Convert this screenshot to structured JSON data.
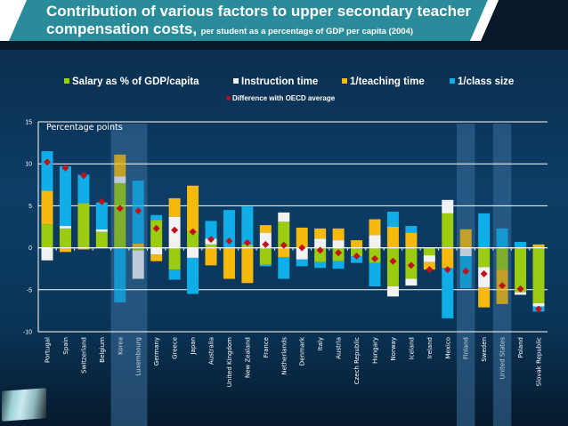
{
  "header": {
    "title_line1": "Contribution of various factors to upper secondary teacher",
    "title_line2_main": "compensation costs,",
    "title_line2_sub": "per student as a percentage of GDP per capita (2004)"
  },
  "legend": {
    "items": [
      {
        "label": "Salary as % of GDP/capita",
        "color": "#9ccc10"
      },
      {
        "label": "Instruction time",
        "color": "#f2f2f2"
      },
      {
        "label": "1/teaching time",
        "color": "#f7b90b"
      },
      {
        "label": "1/class size",
        "color": "#10aee8"
      }
    ],
    "diff_label": "Difference with OECD average",
    "diff_color": "#c0101a"
  },
  "chart_data": {
    "type": "bar",
    "stacked": true,
    "title": "Contribution of various factors to upper secondary teacher compensation costs, per student as a percentage of GDP per capita (2004)",
    "ylabel": "Percentage points",
    "xlabel": "",
    "ylim": [
      -10,
      15
    ],
    "yticks": [
      15,
      10,
      5,
      0,
      -5,
      -10
    ],
    "grid": true,
    "legend_position": "top",
    "highlighted": [
      "Korea",
      "Luxembourg",
      "Finland",
      "United States"
    ],
    "component_colors": {
      "salary": "#9ccc10",
      "instruction": "#f2f2f2",
      "teaching": "#f7b90b",
      "classsize": "#10aee8"
    },
    "categories": [
      "Portugal",
      "Spain",
      "Switzerland",
      "Belgium",
      "Korea",
      "Luxembourg",
      "Germany",
      "Greece",
      "Japan",
      "Australia",
      "United Kingdom",
      "New Zealand",
      "France",
      "Netherlands",
      "Denmark",
      "Italy",
      "Austria",
      "Czech Republic",
      "Hungary",
      "Norway",
      "Iceland",
      "Ireland",
      "Mexico",
      "Finland",
      "Sweden",
      "United States",
      "Poland",
      "Slovak Republic"
    ],
    "series": [
      {
        "name": "Salary as % of GDP/capita",
        "key": "salary",
        "values": [
          2.8,
          2.3,
          5.3,
          1.9,
          7.7,
          -0.3,
          3.3,
          -2.6,
          1.9,
          0.4,
          -0.1,
          0.4,
          -2.0,
          3.1,
          0.0,
          -1.7,
          -1.6,
          -1.0,
          -1.8,
          -4.6,
          -3.7,
          -0.9,
          4.1,
          0.0,
          -2.3,
          -2.6,
          -5.3,
          -6.6
        ]
      },
      {
        "name": "Instruction time",
        "key": "instruction",
        "values": [
          -1.5,
          0.3,
          0.0,
          0.3,
          0.8,
          -3.4,
          -0.8,
          3.7,
          -1.2,
          0.7,
          0.0,
          0.0,
          1.8,
          1.1,
          -1.4,
          1.1,
          0.9,
          0.0,
          1.5,
          -1.2,
          -0.8,
          -0.8,
          1.6,
          -1.0,
          -2.4,
          0.0,
          -0.3,
          -0.4
        ]
      },
      {
        "name": "1/teaching time",
        "key": "teaching",
        "values": [
          4.0,
          -0.5,
          -0.2,
          0.0,
          2.6,
          0.5,
          -0.8,
          2.2,
          5.5,
          -2.1,
          -3.6,
          -4.2,
          0.9,
          -1.1,
          2.4,
          1.2,
          1.4,
          0.9,
          1.9,
          2.5,
          1.8,
          -0.9,
          -2.4,
          2.2,
          -2.4,
          -4.1,
          0.0,
          0.4
        ]
      },
      {
        "name": "1/class size",
        "key": "classsize",
        "values": [
          4.7,
          7.1,
          3.4,
          3.2,
          -6.5,
          7.5,
          0.6,
          -1.2,
          -4.3,
          2.1,
          4.5,
          4.5,
          -0.2,
          -2.6,
          -0.8,
          -0.7,
          -0.9,
          -0.8,
          -2.8,
          1.8,
          0.8,
          0.0,
          -6.0,
          -3.8,
          4.1,
          2.3,
          0.7,
          -0.6
        ]
      }
    ],
    "difference_with_oecd_average": [
      10.2,
      9.5,
      8.6,
      5.5,
      4.7,
      4.4,
      2.3,
      2.1,
      1.9,
      1.0,
      0.8,
      0.6,
      0.4,
      0.3,
      0.0,
      -0.3,
      -0.6,
      -1.0,
      -1.3,
      -1.6,
      -2.1,
      -2.6,
      -2.6,
      -2.8,
      -3.1,
      -4.5,
      -4.9,
      -7.3
    ],
    "stack_order": {
      "Portugal": [
        "salary",
        "teaching",
        "classsize",
        "instruction"
      ],
      "Spain": [
        "salary",
        "instruction",
        "classsize",
        "teaching"
      ],
      "Switzerland": [
        "salary",
        "classsize",
        "teaching",
        "instruction"
      ],
      "Belgium": [
        "salary",
        "instruction",
        "classsize",
        "teaching"
      ],
      "Korea": [
        "salary",
        "instruction",
        "teaching",
        "classsize"
      ],
      "Luxembourg": [
        "teaching",
        "classsize",
        "salary",
        "instruction"
      ],
      "Germany": [
        "salary",
        "classsize",
        "instruction",
        "teaching"
      ],
      "Greece": [
        "instruction",
        "teaching",
        "salary",
        "classsize"
      ],
      "Japan": [
        "salary",
        "teaching",
        "instruction",
        "classsize"
      ],
      "Australia": [
        "salary",
        "instruction",
        "classsize",
        "teaching"
      ],
      "United Kingdom": [
        "classsize",
        "salary",
        "teaching",
        "instruction"
      ],
      "New Zealand": [
        "salary",
        "classsize",
        "teaching",
        "instruction"
      ],
      "France": [
        "instruction",
        "teaching",
        "salary",
        "classsize"
      ],
      "Netherlands": [
        "salary",
        "instruction",
        "teaching",
        "classsize"
      ],
      "Denmark": [
        "teaching",
        "instruction",
        "classsize",
        "salary"
      ],
      "Italy": [
        "instruction",
        "teaching",
        "salary",
        "classsize"
      ],
      "Austria": [
        "instruction",
        "teaching",
        "salary",
        "classsize"
      ],
      "Czech Republic": [
        "teaching",
        "salary",
        "classsize",
        "instruction"
      ],
      "Hungary": [
        "instruction",
        "teaching",
        "salary",
        "classsize"
      ],
      "Norway": [
        "teaching",
        "classsize",
        "salary",
        "instruction"
      ],
      "Iceland": [
        "teaching",
        "classsize",
        "salary",
        "instruction"
      ],
      "Ireland": [
        "salary",
        "instruction",
        "teaching",
        "classsize"
      ],
      "Mexico": [
        "salary",
        "instruction",
        "teaching",
        "classsize"
      ],
      "Finland": [
        "teaching",
        "instruction",
        "classsize",
        "salary"
      ],
      "Sweden": [
        "classsize",
        "salary",
        "instruction",
        "teaching"
      ],
      "United States": [
        "classsize",
        "salary",
        "teaching",
        "instruction"
      ],
      "Poland": [
        "classsize",
        "salary",
        "instruction",
        "teaching"
      ],
      "Slovak Republic": [
        "teaching",
        "salary",
        "instruction",
        "classsize"
      ]
    }
  }
}
